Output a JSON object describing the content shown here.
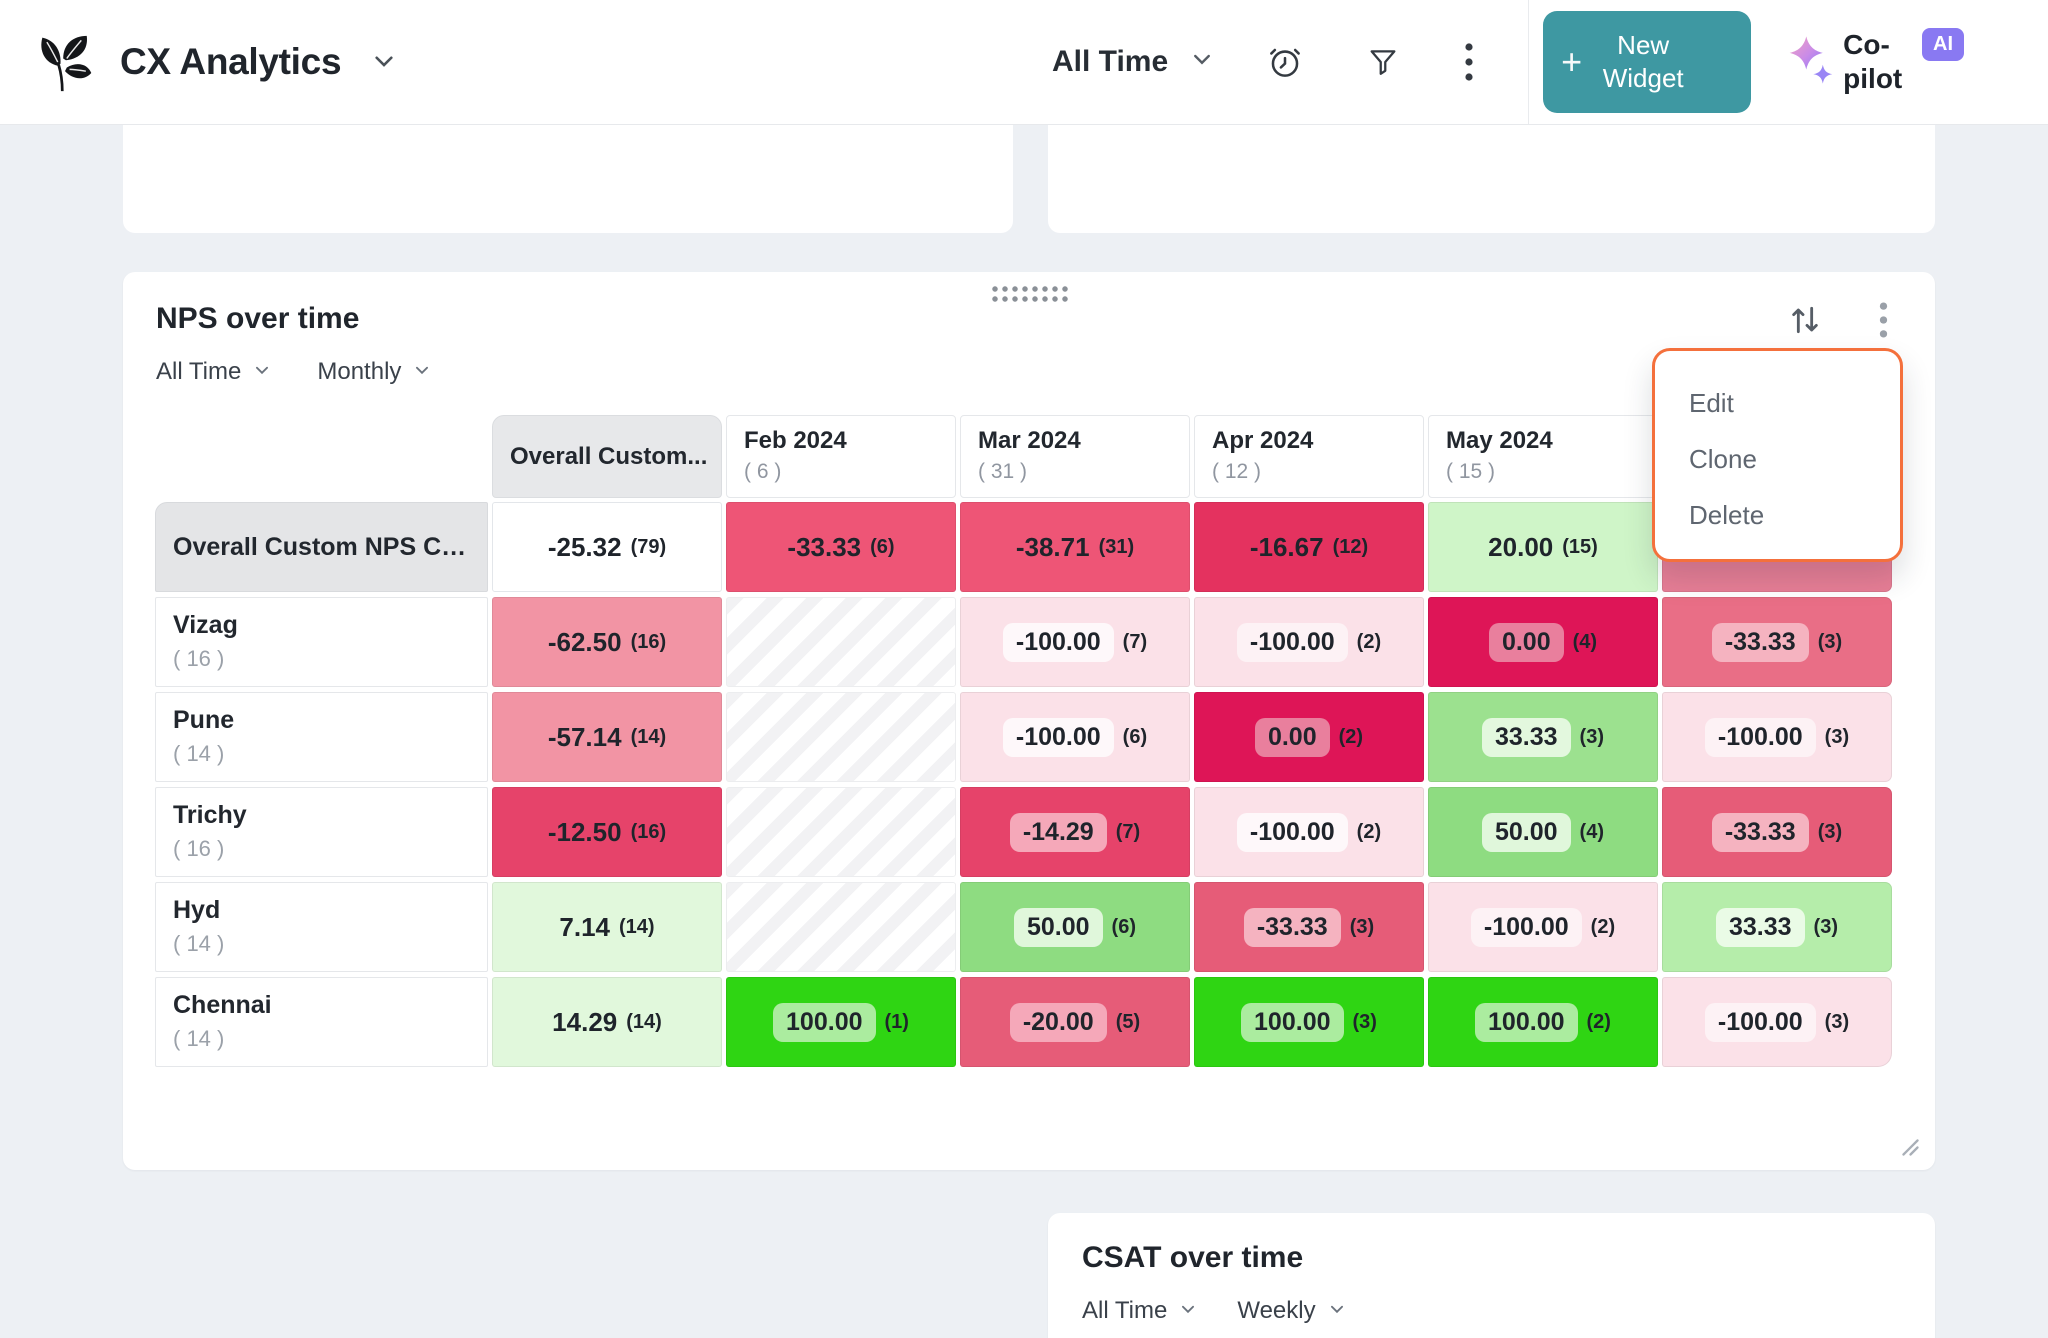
{
  "header": {
    "app_title": "CX Analytics",
    "time_filter": "All Time",
    "new_widget_label": "New Widget",
    "copilot_label": "Co-pilot",
    "ai_badge": "AI",
    "icons": [
      "alarm-icon",
      "filter-icon",
      "kebab-icon",
      "chevron-down-icon"
    ]
  },
  "colors": {
    "accent_teal": "#3E98A2",
    "menu_border_orange": "#F4703C",
    "ai_badge_purple": "#8979F2",
    "page_background": "#EDF0F4"
  },
  "nps_widget": {
    "title": "NPS over time",
    "time_filter": "All Time",
    "granularity": "Monthly",
    "menu_items": [
      "Edit",
      "Clone",
      "Delete"
    ],
    "table": {
      "columns": [
        {
          "label": "Overall Custom...",
          "count": "",
          "gray": true
        },
        {
          "label": "Feb 2024",
          "count": "( 6 )"
        },
        {
          "label": "Mar 2024",
          "count": "( 31 )"
        },
        {
          "label": "Apr 2024",
          "count": "( 12 )"
        },
        {
          "label": "May 2024",
          "count": "( 15 )"
        },
        {
          "label": "",
          "count": "",
          "hidden_behind_menu": true
        }
      ],
      "rows": [
        {
          "label": "Overall Custom NPS Calcu...",
          "count": "",
          "gray": true,
          "cells": [
            {
              "value": "-25.32",
              "count": "(79)",
              "bg": "#FFFFFF",
              "border": "#E3E6EA"
            },
            {
              "value": "-33.33",
              "count": "(6)",
              "bg": "#EE5576"
            },
            {
              "value": "-38.71",
              "count": "(31)",
              "bg": "#EE5576"
            },
            {
              "value": "-16.67",
              "count": "(12)",
              "bg": "#E4325F"
            },
            {
              "value": "20.00",
              "count": "(15)",
              "bg": "#CFF5C8"
            },
            {
              "value": "",
              "count": "",
              "bg": "#E87E96"
            }
          ]
        },
        {
          "label": "Vizag",
          "count": "( 16 )",
          "cells": [
            {
              "value": "-62.50",
              "count": "(16)",
              "bg": "#F294A4"
            },
            {
              "hatched": true
            },
            {
              "value": "-100.00",
              "count": "(7)",
              "bg": "#FBE1E8",
              "pill": "#FEF8FA"
            },
            {
              "value": "-100.00",
              "count": "(2)",
              "bg": "#FBE1E8",
              "pill": "#FDF2F5"
            },
            {
              "value": "0.00",
              "count": "(4)",
              "bg": "#DE1557",
              "pill": "#E97F9D"
            },
            {
              "value": "-33.33",
              "count": "(3)",
              "bg": "#E96E86",
              "pill": "#F5B3C0"
            }
          ]
        },
        {
          "label": "Pune",
          "count": "( 14 )",
          "cells": [
            {
              "value": "-57.14",
              "count": "(14)",
              "bg": "#F294A4"
            },
            {
              "hatched": true
            },
            {
              "value": "-100.00",
              "count": "(6)",
              "bg": "#FBE1E8",
              "pill": "#FEF8FA"
            },
            {
              "value": "0.00",
              "count": "(2)",
              "bg": "#DE1557",
              "pill": "#E97F9D"
            },
            {
              "value": "33.33",
              "count": "(3)",
              "bg": "#9CE18F",
              "pill": "#E3F8DE"
            },
            {
              "value": "-100.00",
              "count": "(3)",
              "bg": "#FBE1E8",
              "pill": "#FDF2F5"
            }
          ]
        },
        {
          "label": "Trichy",
          "count": "( 16 )",
          "cells": [
            {
              "value": "-12.50",
              "count": "(16)",
              "bg": "#E6436A"
            },
            {
              "hatched": true
            },
            {
              "value": "-14.29",
              "count": "(7)",
              "bg": "#E6436A",
              "pill": "#F5A8B9"
            },
            {
              "value": "-100.00",
              "count": "(2)",
              "bg": "#FBE1E8",
              "pill": "#FEF8FA"
            },
            {
              "value": "50.00",
              "count": "(4)",
              "bg": "#8EDC81",
              "pill": "#E0F7DB"
            },
            {
              "value": "-33.33",
              "count": "(3)",
              "bg": "#E65C78",
              "pill": "#F5B3C0"
            }
          ]
        },
        {
          "label": "Hyd",
          "count": "( 14 )",
          "cells": [
            {
              "value": "7.14",
              "count": "(14)",
              "bg": "#E1F8DC"
            },
            {
              "hatched": true
            },
            {
              "value": "50.00",
              "count": "(6)",
              "bg": "#8EDC81",
              "pill": "#E0F7DB"
            },
            {
              "value": "-33.33",
              "count": "(3)",
              "bg": "#E65C78",
              "pill": "#F5B3C0"
            },
            {
              "value": "-100.00",
              "count": "(2)",
              "bg": "#FBE1E8",
              "pill": "#FDF2F5"
            },
            {
              "value": "33.33",
              "count": "(3)",
              "bg": "#B5EDAA",
              "pill": "#EAFBE6"
            }
          ]
        },
        {
          "label": "Chennai",
          "count": "( 14 )",
          "cells": [
            {
              "value": "14.29",
              "count": "(14)",
              "bg": "#E1F8DC"
            },
            {
              "value": "100.00",
              "count": "(1)",
              "bg": "#2FD513",
              "pill": "#ABEC9F"
            },
            {
              "value": "-20.00",
              "count": "(5)",
              "bg": "#E65C78",
              "pill": "#F5A8B9"
            },
            {
              "value": "100.00",
              "count": "(3)",
              "bg": "#2FD513",
              "pill": "#ABEC9F"
            },
            {
              "value": "100.00",
              "count": "(2)",
              "bg": "#2FD513",
              "pill": "#ABEC9F"
            },
            {
              "value": "-100.00",
              "count": "(3)",
              "bg": "#FBE1E8",
              "pill": "#FDF2F5"
            }
          ]
        }
      ]
    }
  },
  "csat_widget": {
    "title": "CSAT over time",
    "time_filter": "All Time",
    "granularity": "Weekly"
  }
}
